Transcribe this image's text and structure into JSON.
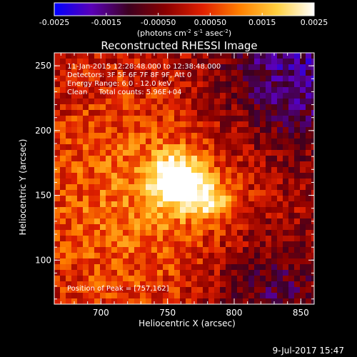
{
  "chart_data": {
    "type": "heatmap",
    "title": "Reconstructed RHESSI Image",
    "xlabel": "Heliocentric X (arcsec)",
    "ylabel": "Heliocentric Y (arcsec)",
    "xlim": [
      665,
      860
    ],
    "ylim": [
      66,
      260
    ],
    "xticks": [
      700,
      750,
      800,
      850
    ],
    "yticks": [
      100,
      150,
      200,
      250
    ],
    "colorbar": {
      "range": [
        -0.0025,
        0.0025
      ],
      "ticks": [
        "-0.0025",
        "-0.0015",
        "-0.00050",
        "0.00050",
        "0.0015",
        "0.0025"
      ],
      "label_main": "(photons cm",
      "label_exp1": "-2",
      "label_mid": " s",
      "label_exp2": "-1",
      "label_end": " asec",
      "label_exp3": "-2",
      "label_close": ")",
      "stops": [
        "#0000ff",
        "#5a00b8",
        "#3d0020",
        "#8a0000",
        "#e02000",
        "#ff8000",
        "#ffd040",
        "#ffffff"
      ]
    },
    "annotations": [
      "11-Jan-2015 12:28:48.000 to 12:38:48.000",
      "Detectors: 3F 5F 6F 7F 8F 9F, Att 0",
      "Energy Range: 6.0 - 12.0 keV",
      "Clean     Total counts: 5.96E+04"
    ],
    "peak_label": "Position of Peak = [757,162]",
    "peak": [
      757,
      162
    ]
  },
  "footer_timestamp": "9-Jul-2017 15:47"
}
